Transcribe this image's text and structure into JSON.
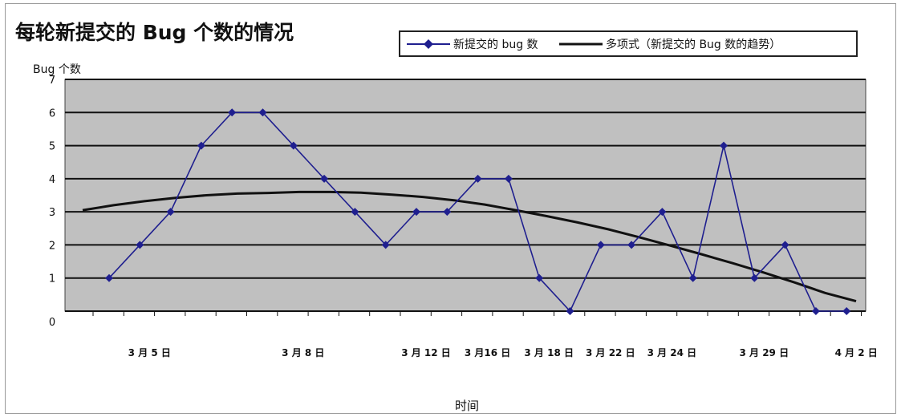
{
  "chart_data": {
    "type": "line",
    "title": "每轮新提交的 Bug 个数的情况",
    "ylabel": "Bug 个数",
    "xlabel": "时间",
    "ylim": [
      0,
      7
    ],
    "yticks": [
      0,
      1,
      2,
      3,
      4,
      5,
      6,
      7
    ],
    "x_tick_labels": [
      {
        "index": 1,
        "label": "3 月 5 日"
      },
      {
        "index": 6,
        "label": "3 月 8 日"
      },
      {
        "index": 10,
        "label": "3 月 12 日"
      },
      {
        "index": 12,
        "label": "3 月16 日"
      },
      {
        "index": 14,
        "label": "3 月 18 日"
      },
      {
        "index": 16,
        "label": "3 月 22 日"
      },
      {
        "index": 18,
        "label": "3 月 24 日"
      },
      {
        "index": 21,
        "label": "3 月 29 日"
      },
      {
        "index": 24,
        "label": "4 月 2 日"
      }
    ],
    "series": [
      {
        "name": "新提交的 bug 数",
        "color": "#1f1f8f",
        "marker": "diamond",
        "values": [
          1,
          2,
          3,
          5,
          6,
          6,
          5,
          4,
          3,
          2,
          3,
          3,
          4,
          4,
          1,
          0,
          2,
          2,
          3,
          1,
          5,
          1,
          2,
          0,
          0
        ]
      },
      {
        "name": "多项式（新提交的 Bug 数的趋势）",
        "color": "#111111",
        "type": "trendline",
        "values": [
          3.05,
          3.2,
          3.32,
          3.42,
          3.5,
          3.55,
          3.57,
          3.6,
          3.6,
          3.58,
          3.52,
          3.45,
          3.35,
          3.22,
          3.05,
          2.87,
          2.68,
          2.47,
          2.23,
          1.98,
          1.72,
          1.45,
          1.17,
          0.87,
          0.55,
          0.3
        ]
      }
    ],
    "grid": true,
    "plot_background": "#c0c0c0",
    "legend_position": "top-right"
  }
}
